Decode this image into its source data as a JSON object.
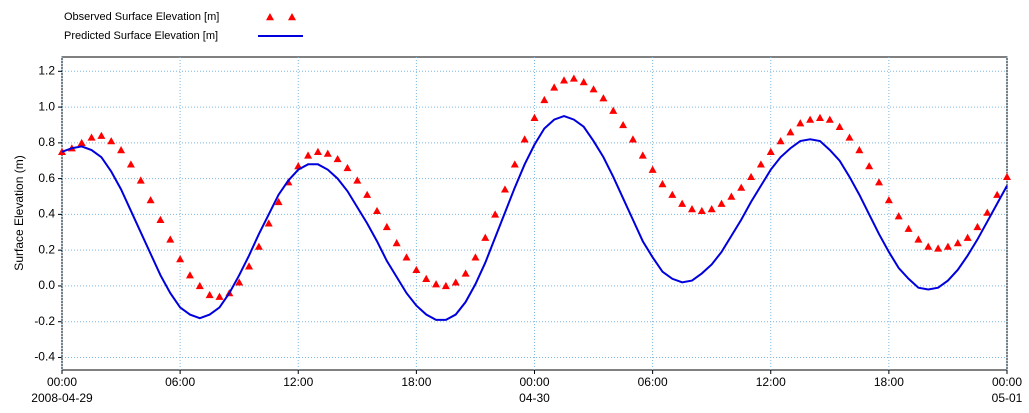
{
  "chart_data": {
    "type": "line",
    "y_label": "Surface Elevation (m)",
    "x": [
      "2008-04-29 00:00",
      "2008-04-29 00:30",
      "2008-04-29 01:00",
      "2008-04-29 01:30",
      "2008-04-29 02:00",
      "2008-04-29 02:30",
      "2008-04-29 03:00",
      "2008-04-29 03:30",
      "2008-04-29 04:00",
      "2008-04-29 04:30",
      "2008-04-29 05:00",
      "2008-04-29 05:30",
      "2008-04-29 06:00",
      "2008-04-29 06:30",
      "2008-04-29 07:00",
      "2008-04-29 07:30",
      "2008-04-29 08:00",
      "2008-04-29 08:30",
      "2008-04-29 09:00",
      "2008-04-29 09:30",
      "2008-04-29 10:00",
      "2008-04-29 10:30",
      "2008-04-29 11:00",
      "2008-04-29 11:30",
      "2008-04-29 12:00",
      "2008-04-29 12:30",
      "2008-04-29 13:00",
      "2008-04-29 13:30",
      "2008-04-29 14:00",
      "2008-04-29 14:30",
      "2008-04-29 15:00",
      "2008-04-29 15:30",
      "2008-04-29 16:00",
      "2008-04-29 16:30",
      "2008-04-29 17:00",
      "2008-04-29 17:30",
      "2008-04-29 18:00",
      "2008-04-29 18:30",
      "2008-04-29 19:00",
      "2008-04-29 19:30",
      "2008-04-29 20:00",
      "2008-04-29 20:30",
      "2008-04-29 21:00",
      "2008-04-29 21:30",
      "2008-04-29 22:00",
      "2008-04-29 22:30",
      "2008-04-29 23:00",
      "2008-04-29 23:30",
      "2008-04-30 00:00",
      "2008-04-30 00:30",
      "2008-04-30 01:00",
      "2008-04-30 01:30",
      "2008-04-30 02:00",
      "2008-04-30 02:30",
      "2008-04-30 03:00",
      "2008-04-30 03:30",
      "2008-04-30 04:00",
      "2008-04-30 04:30",
      "2008-04-30 05:00",
      "2008-04-30 05:30",
      "2008-04-30 06:00",
      "2008-04-30 06:30",
      "2008-04-30 07:00",
      "2008-04-30 07:30",
      "2008-04-30 08:00",
      "2008-04-30 08:30",
      "2008-04-30 09:00",
      "2008-04-30 09:30",
      "2008-04-30 10:00",
      "2008-04-30 10:30",
      "2008-04-30 11:00",
      "2008-04-30 11:30",
      "2008-04-30 12:00",
      "2008-04-30 12:30",
      "2008-04-30 13:00",
      "2008-04-30 13:30",
      "2008-04-30 14:00",
      "2008-04-30 14:30",
      "2008-04-30 15:00",
      "2008-04-30 15:30",
      "2008-04-30 16:00",
      "2008-04-30 16:30",
      "2008-04-30 17:00",
      "2008-04-30 17:30",
      "2008-04-30 18:00",
      "2008-04-30 18:30",
      "2008-04-30 19:00",
      "2008-04-30 19:30",
      "2008-04-30 20:00",
      "2008-04-30 20:30",
      "2008-04-30 21:00",
      "2008-04-30 21:30",
      "2008-04-30 22:00",
      "2008-04-30 22:30",
      "2008-04-30 23:00",
      "2008-04-30 23:30",
      "2008-05-01 00:00"
    ],
    "series": [
      {
        "name": "Observed Surface Elevation [m]",
        "color": "#ff0000",
        "marker": "triangle",
        "values": [
          0.75,
          0.77,
          0.8,
          0.83,
          0.84,
          0.81,
          0.76,
          0.68,
          0.59,
          0.48,
          0.37,
          0.26,
          0.15,
          0.06,
          0.0,
          -0.05,
          -0.06,
          -0.04,
          0.02,
          0.11,
          0.22,
          0.35,
          0.47,
          0.58,
          0.67,
          0.73,
          0.75,
          0.74,
          0.71,
          0.66,
          0.59,
          0.51,
          0.42,
          0.33,
          0.24,
          0.16,
          0.09,
          0.04,
          0.01,
          0.0,
          0.02,
          0.07,
          0.16,
          0.27,
          0.4,
          0.54,
          0.68,
          0.82,
          0.94,
          1.04,
          1.11,
          1.15,
          1.16,
          1.14,
          1.1,
          1.05,
          0.98,
          0.9,
          0.82,
          0.73,
          0.65,
          0.57,
          0.51,
          0.46,
          0.43,
          0.42,
          0.43,
          0.46,
          0.5,
          0.55,
          0.61,
          0.68,
          0.75,
          0.81,
          0.86,
          0.91,
          0.93,
          0.94,
          0.93,
          0.89,
          0.83,
          0.76,
          0.67,
          0.58,
          0.48,
          0.39,
          0.32,
          0.26,
          0.22,
          0.21,
          0.22,
          0.24,
          0.27,
          0.33,
          0.41,
          0.51,
          0.61
        ]
      },
      {
        "name": "Predicted Surface Elevation [m]",
        "color": "#0000dd",
        "marker": "line",
        "values": [
          0.75,
          0.77,
          0.78,
          0.76,
          0.72,
          0.64,
          0.54,
          0.42,
          0.3,
          0.18,
          0.06,
          -0.04,
          -0.12,
          -0.16,
          -0.18,
          -0.16,
          -0.12,
          -0.04,
          0.06,
          0.17,
          0.29,
          0.4,
          0.51,
          0.59,
          0.65,
          0.68,
          0.68,
          0.65,
          0.6,
          0.53,
          0.44,
          0.35,
          0.25,
          0.14,
          0.05,
          -0.04,
          -0.11,
          -0.16,
          -0.19,
          -0.19,
          -0.16,
          -0.09,
          0.01,
          0.13,
          0.27,
          0.41,
          0.55,
          0.68,
          0.79,
          0.88,
          0.93,
          0.95,
          0.93,
          0.89,
          0.81,
          0.72,
          0.61,
          0.49,
          0.37,
          0.25,
          0.16,
          0.08,
          0.04,
          0.02,
          0.03,
          0.07,
          0.12,
          0.19,
          0.28,
          0.37,
          0.47,
          0.56,
          0.65,
          0.72,
          0.77,
          0.81,
          0.82,
          0.81,
          0.76,
          0.7,
          0.61,
          0.51,
          0.4,
          0.29,
          0.19,
          0.1,
          0.04,
          -0.01,
          -0.02,
          -0.01,
          0.03,
          0.09,
          0.17,
          0.26,
          0.36,
          0.46,
          0.56
        ]
      }
    ],
    "xlim": [
      "2008-04-29 00:00",
      "2008-05-01 00:00"
    ],
    "xticks": [
      {
        "value": "2008-04-29 00:00",
        "label": "00:00",
        "sublabel": "2008-04-29"
      },
      {
        "value": "2008-04-29 06:00",
        "label": "06:00"
      },
      {
        "value": "2008-04-29 12:00",
        "label": "12:00"
      },
      {
        "value": "2008-04-29 18:00",
        "label": "18:00"
      },
      {
        "value": "2008-04-30 00:00",
        "label": "00:00",
        "sublabel": "04-30"
      },
      {
        "value": "2008-04-30 06:00",
        "label": "06:00"
      },
      {
        "value": "2008-04-30 12:00",
        "label": "12:00"
      },
      {
        "value": "2008-04-30 18:00",
        "label": "18:00"
      },
      {
        "value": "2008-05-01 00:00",
        "label": "00:00",
        "sublabel": "05-01"
      }
    ],
    "ylim": [
      -0.47,
      1.28
    ],
    "yticks": [
      -0.4,
      -0.2,
      {
        "value": 0,
        "label": "0.0"
      },
      0.2,
      0.4,
      0.6,
      0.8,
      {
        "value": 1,
        "label": "1.0"
      },
      1.2
    ],
    "grid": true,
    "legend": "top-left"
  }
}
